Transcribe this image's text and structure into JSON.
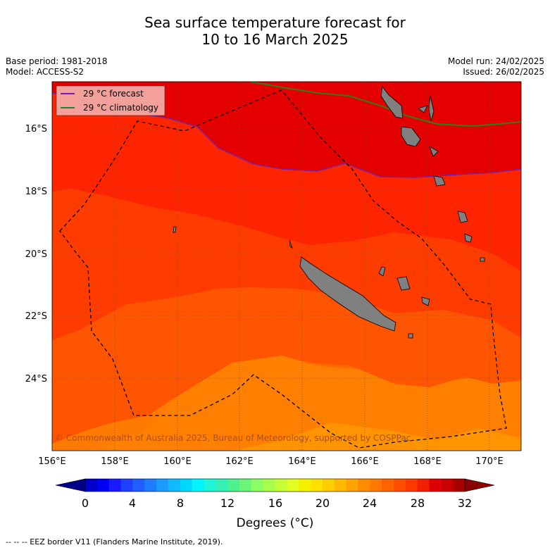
{
  "title_line1": "Sea surface temperature forecast for",
  "title_line2": "10 to 16 March 2025",
  "base_period": "Base period: 1981-2018",
  "model": "Model: ACCESS-S2",
  "model_run": "Model run: 24/02/2025",
  "issued": "Issued: 26/02/2025",
  "legend": {
    "forecast": "29 °C  forecast",
    "climatology": "29 °C  climatology",
    "forecast_color": "#7a1fa2",
    "climatology_color": "#2e7d1f"
  },
  "lat_labels": [
    "16°S",
    "18°S",
    "20°S",
    "22°S",
    "24°S"
  ],
  "lon_labels": [
    "156°E",
    "158°E",
    "160°E",
    "162°E",
    "164°E",
    "166°E",
    "168°E",
    "170°E"
  ],
  "copyright": "© Commonwealth of Australia 2025, Bureau of Meteorology, supported by COSPPac",
  "colorbar": {
    "ticks": [
      "0",
      "4",
      "8",
      "12",
      "16",
      "20",
      "24",
      "28",
      "32"
    ],
    "label": "Degrees (°C)",
    "colors": [
      "#00008b",
      "#0000c8",
      "#0000f5",
      "#1a1aff",
      "#2040ff",
      "#1f5fff",
      "#1e7dff",
      "#1c9bff",
      "#13b9ff",
      "#00d7ff",
      "#00f5ff",
      "#1cf5d8",
      "#35f0b4",
      "#4ff090",
      "#6af578",
      "#8bff63",
      "#a7ff4c",
      "#c6ff37",
      "#e2ff24",
      "#f5f000",
      "#ffe100",
      "#ffcd00",
      "#ffb800",
      "#ffa300",
      "#ff8c00",
      "#ff7800",
      "#ff6300",
      "#ff4e00",
      "#ff3800",
      "#f02000",
      "#e00000",
      "#c80000",
      "#a80000",
      "#8b0000"
    ]
  },
  "eez_note": "--  --  -- EEZ border V11 (Flanders Marine Institute, 2019)."
}
